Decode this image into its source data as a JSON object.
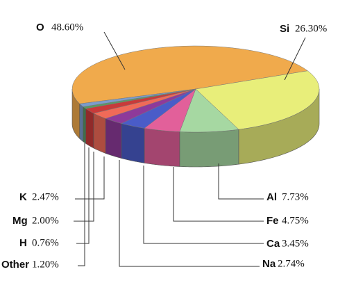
{
  "chart_data": {
    "type": "pie3d",
    "categories": [
      "O",
      "Si",
      "Al",
      "Fe",
      "Ca",
      "Na",
      "K",
      "Mg",
      "H",
      "Other"
    ],
    "values": [
      48.6,
      26.3,
      7.73,
      4.75,
      3.45,
      2.74,
      2.47,
      2.0,
      0.76,
      1.2
    ],
    "value_labels": [
      "48.60%",
      "26.30%",
      "7.73%",
      "4.75%",
      "3.45%",
      "2.74%",
      "2.47%",
      "2.00%",
      "0.76%",
      "1.20%"
    ],
    "colors": [
      "#f0aa4c",
      "#e8ee7a",
      "#a6d8a2",
      "#e2609a",
      "#4a5cc8",
      "#8e3a9a",
      "#f06a58",
      "#c83a3a",
      "#5a9a62",
      "#7c9ccc"
    ]
  }
}
